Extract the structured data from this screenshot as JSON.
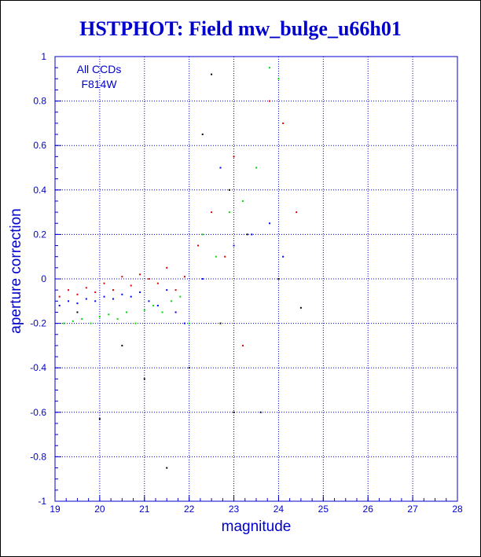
{
  "chart_data": {
    "type": "scatter",
    "title": "HSTPHOT: Field mw_bulge_u66h01",
    "xlabel": "magnitude",
    "ylabel": "aperture correction",
    "xlim": [
      19,
      28
    ],
    "ylim": [
      -1,
      1
    ],
    "xticks": [
      "19",
      "20",
      "21",
      "22",
      "23",
      "24",
      "25",
      "26",
      "27",
      "28"
    ],
    "yticks": [
      "-1",
      "-0.8",
      "-0.6",
      "-0.4",
      "-0.2",
      "0",
      "0.2",
      "0.4",
      "0.6",
      "0.8",
      "1"
    ],
    "annotation": [
      "All CCDs",
      "F814W"
    ],
    "grid": true,
    "colors": {
      "axis": "#0000cc",
      "text": "#0000cc",
      "red": "#e00000",
      "blue": "#0000ff",
      "green": "#00dd00",
      "black": "#000000"
    },
    "series": [
      {
        "color": "#e00000",
        "x": [
          19.1,
          19.3,
          19.5,
          19.7,
          19.9,
          20.1,
          20.3,
          20.5,
          20.7,
          20.9,
          21.1,
          21.3,
          21.5,
          21.7,
          21.9,
          22.2,
          22.5,
          22.8,
          23.0,
          23.2,
          23.5,
          23.8,
          24.1,
          24.4
        ],
        "y": [
          -0.08,
          -0.05,
          -0.07,
          -0.04,
          -0.06,
          -0.02,
          -0.05,
          0.01,
          -0.03,
          0.02,
          0.0,
          -0.02,
          0.05,
          -0.05,
          0.01,
          0.15,
          0.3,
          0.1,
          0.55,
          -0.3,
          0.5,
          0.8,
          0.7,
          0.3
        ]
      },
      {
        "color": "#0000ff",
        "x": [
          19.1,
          19.3,
          19.5,
          19.7,
          19.9,
          20.1,
          20.3,
          20.5,
          20.7,
          20.9,
          21.1,
          21.3,
          21.5,
          21.7,
          21.9,
          22.3,
          22.7,
          23.0,
          23.4,
          23.8,
          24.1
        ],
        "y": [
          -0.12,
          -0.1,
          -0.11,
          -0.09,
          -0.1,
          -0.08,
          -0.09,
          -0.07,
          -0.08,
          -0.06,
          -0.1,
          -0.12,
          -0.05,
          -0.15,
          -0.2,
          0.0,
          0.5,
          0.15,
          0.2,
          0.25,
          0.1
        ]
      },
      {
        "color": "#00dd00",
        "x": [
          19.2,
          19.4,
          19.6,
          19.8,
          20.0,
          20.2,
          20.4,
          20.6,
          20.8,
          21.0,
          21.2,
          21.4,
          21.6,
          21.8,
          22.0,
          22.3,
          22.6,
          22.9,
          23.2,
          23.5,
          23.8,
          24.0
        ],
        "y": [
          -0.2,
          -0.19,
          -0.18,
          -0.2,
          -0.17,
          -0.16,
          -0.18,
          -0.15,
          -0.2,
          -0.14,
          -0.12,
          -0.15,
          -0.1,
          -0.08,
          -0.2,
          0.2,
          0.1,
          0.3,
          0.35,
          0.5,
          0.95,
          0.9
        ]
      },
      {
        "color": "#000000",
        "x": [
          19.5,
          20.0,
          20.5,
          21.0,
          21.5,
          22.0,
          22.3,
          22.5,
          22.7,
          22.9,
          23.0,
          23.3,
          23.6,
          24.0,
          24.5
        ],
        "y": [
          -0.15,
          -0.63,
          -0.3,
          -0.45,
          -0.85,
          -0.4,
          0.65,
          0.92,
          -0.2,
          0.4,
          -0.6,
          0.2,
          -0.6,
          0.0,
          -0.13
        ]
      }
    ]
  }
}
